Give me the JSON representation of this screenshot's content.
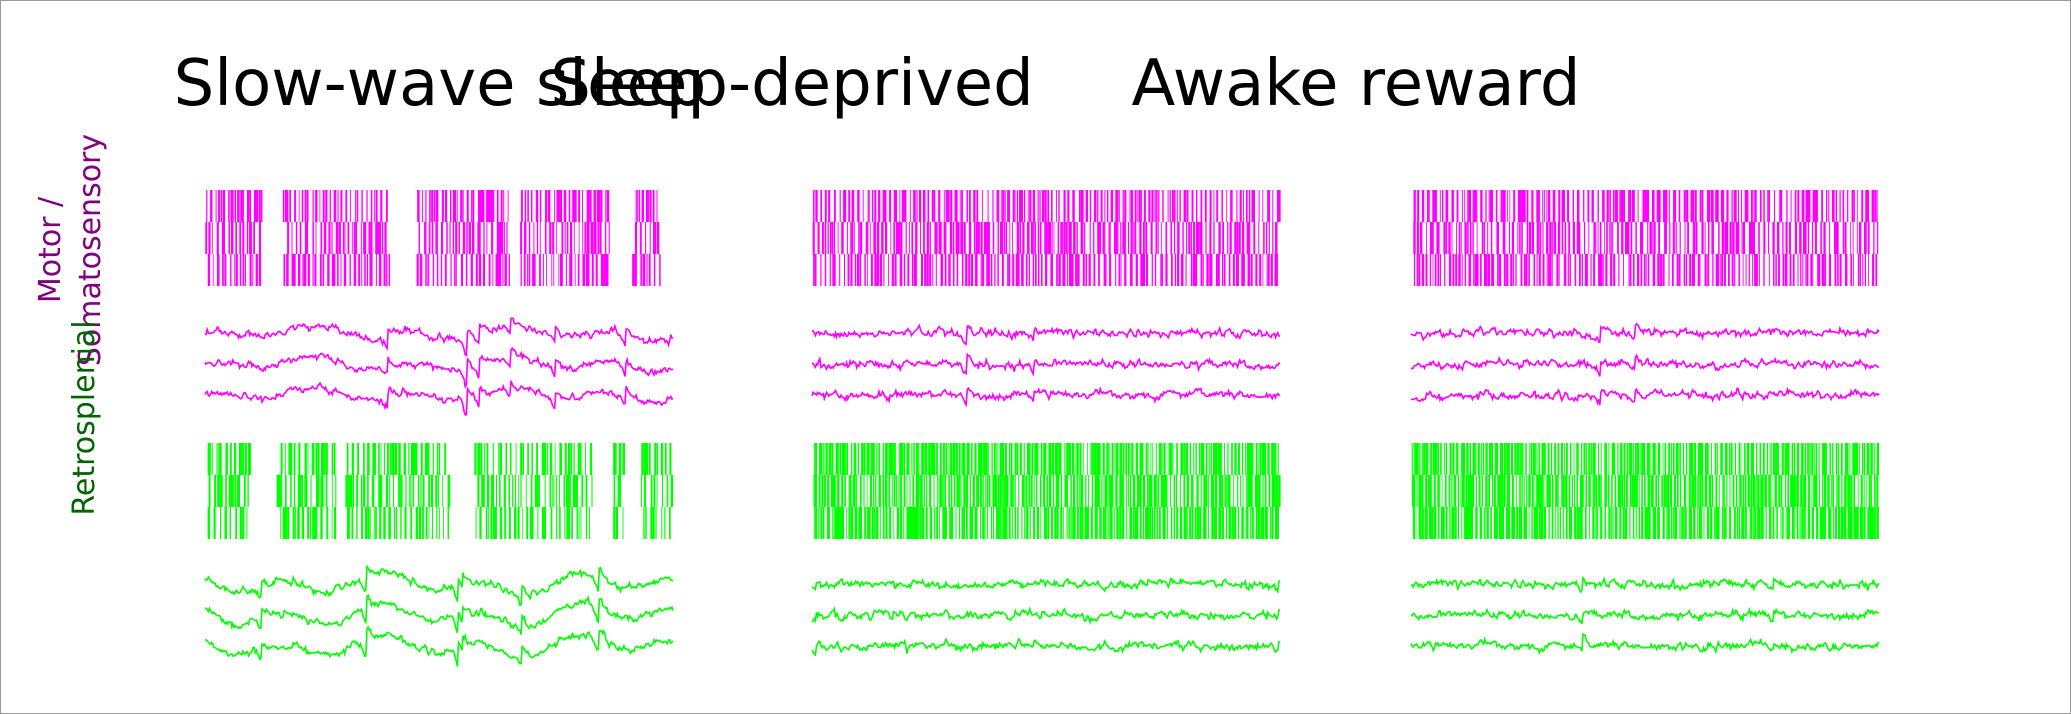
{
  "columns": [
    {
      "title": "Slow-wave sleep",
      "state": "slow-wave"
    },
    {
      "title": "Sleep-deprived",
      "state": "deprived"
    },
    {
      "title": "Awake reward",
      "state": "awake"
    }
  ],
  "rows": [
    {
      "label_line1": "Motor /",
      "label_line2": "Somatosensory",
      "color": "#ff00ff",
      "label_color": "#800080"
    },
    {
      "label_line1": "Retrosplenial",
      "label_line2": "",
      "color": "#00ff00",
      "label_color": "#006400"
    }
  ],
  "raster_rows_per_panel": 3,
  "lfp_traces_per_panel": 3
}
